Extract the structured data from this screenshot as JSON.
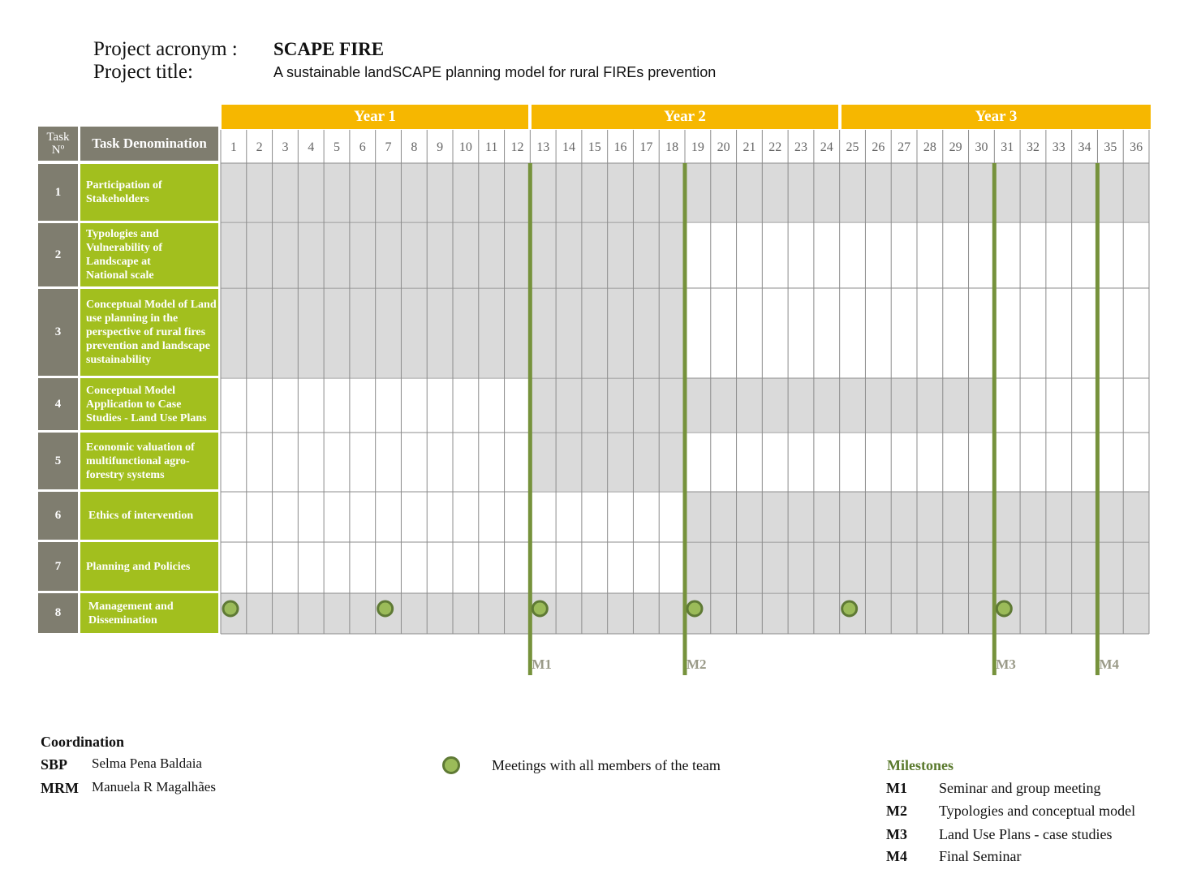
{
  "header": {
    "acronym_label": "Project acronym :",
    "acronym": "SCAPE FIRE",
    "title_label": "Project title:",
    "title": "A sustainable landSCAPE planning model for rural FIREs prevention"
  },
  "table": {
    "years": [
      "Year 1",
      "Year 2",
      "Year 3"
    ],
    "col_task_no": "Task Nº",
    "col_task_name": "Task Denomination",
    "months": [
      "1",
      "2",
      "3",
      "4",
      "5",
      "6",
      "7",
      "8",
      "9",
      "10",
      "11",
      "12",
      "13",
      "14",
      "15",
      "16",
      "17",
      "18",
      "19",
      "20",
      "21",
      "22",
      "23",
      "24",
      "25",
      "26",
      "27",
      "28",
      "29",
      "30",
      "31",
      "32",
      "33",
      "34",
      "35",
      "36"
    ],
    "tasks": [
      {
        "no": "1",
        "name": "Participation of Stakeholders",
        "start": 1,
        "end": 36
      },
      {
        "no": "2",
        "name": "Typologies and Vulnerability of Landscape at National scale",
        "start": 1,
        "end": 18
      },
      {
        "no": "3",
        "name": "Conceptual Model of Land use planning in the perspective of rural fires prevention and landscape sustainability",
        "start": 1,
        "end": 18
      },
      {
        "no": "4",
        "name": "Conceptual Model Application to Case Studies - Land Use Plans",
        "start": 13,
        "end": 30
      },
      {
        "no": "5",
        "name": "Economic valuation of multifunctional agro-forestry systems",
        "start": 13,
        "end": 18
      },
      {
        "no": "6",
        "name": "Ethics of intervention",
        "start": 19,
        "end": 36
      },
      {
        "no": "7",
        "name": "Planning and Policies",
        "start": 19,
        "end": 36
      },
      {
        "no": "8",
        "name": "Management and Dissemination",
        "start": 1,
        "end": 36
      }
    ],
    "meeting_months": [
      1,
      7,
      13,
      19,
      25,
      31
    ],
    "milestones": [
      {
        "label": "M1",
        "after_month": 12
      },
      {
        "label": "M2",
        "after_month": 18
      },
      {
        "label": "M3",
        "after_month": 30
      },
      {
        "label": "M4",
        "after_month": 34
      }
    ]
  },
  "legend": {
    "coordination_title": "Coordination",
    "coordinators": [
      {
        "code": "SBP",
        "name": "Selma Pena Baldaia"
      },
      {
        "code": "MRM",
        "name": "Manuela R Magalhães"
      }
    ],
    "meetings_label": "Meetings with all members of the team",
    "milestones_title": "Milestones",
    "milestones": [
      {
        "code": "M1",
        "text": "Seminar and group meeting"
      },
      {
        "code": "M2",
        "text": "Typologies and conceptual model"
      },
      {
        "code": "M3",
        "text": "Land Use Plans - case studies"
      },
      {
        "code": "M4",
        "text": "Final Seminar"
      }
    ]
  },
  "colors": {
    "year_bar": "#f6b700",
    "task_name_bg": "#a2bf1e",
    "task_no_bg": "#7f7d6f",
    "bar_fill": "#dadada",
    "milestone_line": "#76923c",
    "meeting_fill": "#9bbb59",
    "meeting_stroke": "#5f7a35"
  }
}
